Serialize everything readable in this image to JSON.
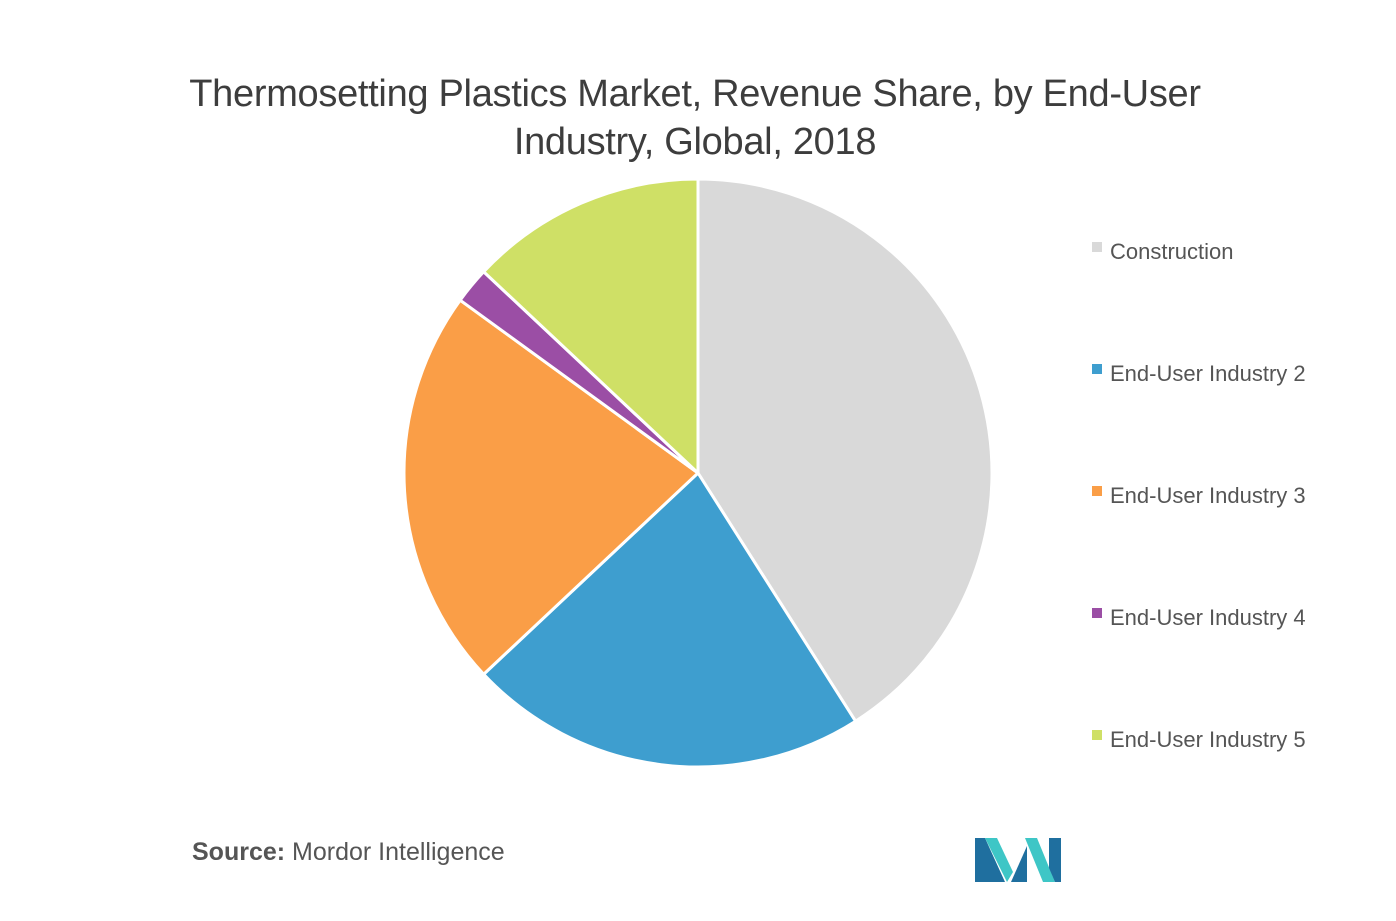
{
  "title": "Thermosetting Plastics Market, Revenue Share, by End-User Industry, Global, 2018",
  "source": {
    "prefix": "Source:",
    "name": "Mordor Intelligence"
  },
  "logo": {
    "icon": "mordor-intelligence-logo",
    "colors": [
      "#1f6f9f",
      "#3ec6c6"
    ]
  },
  "chart_data": {
    "type": "pie",
    "title": "Thermosetting Plastics Market, Revenue Share, by End-User Industry, Global, 2018",
    "start_angle_deg": 0,
    "direction": "clockwise",
    "legend_position": "right",
    "slices": [
      {
        "label": "Construction",
        "value": 41,
        "color": "#d9d9d9"
      },
      {
        "label": "End-User Industry 2",
        "value": 22,
        "color": "#3e9ecf"
      },
      {
        "label": "End-User Industry 3",
        "value": 22,
        "color": "#fa9e47"
      },
      {
        "label": "End-User Industry 4",
        "value": 2,
        "color": "#9b4ea5"
      },
      {
        "label": "End-User Industry 5",
        "value": 13,
        "color": "#cfe066"
      }
    ]
  }
}
